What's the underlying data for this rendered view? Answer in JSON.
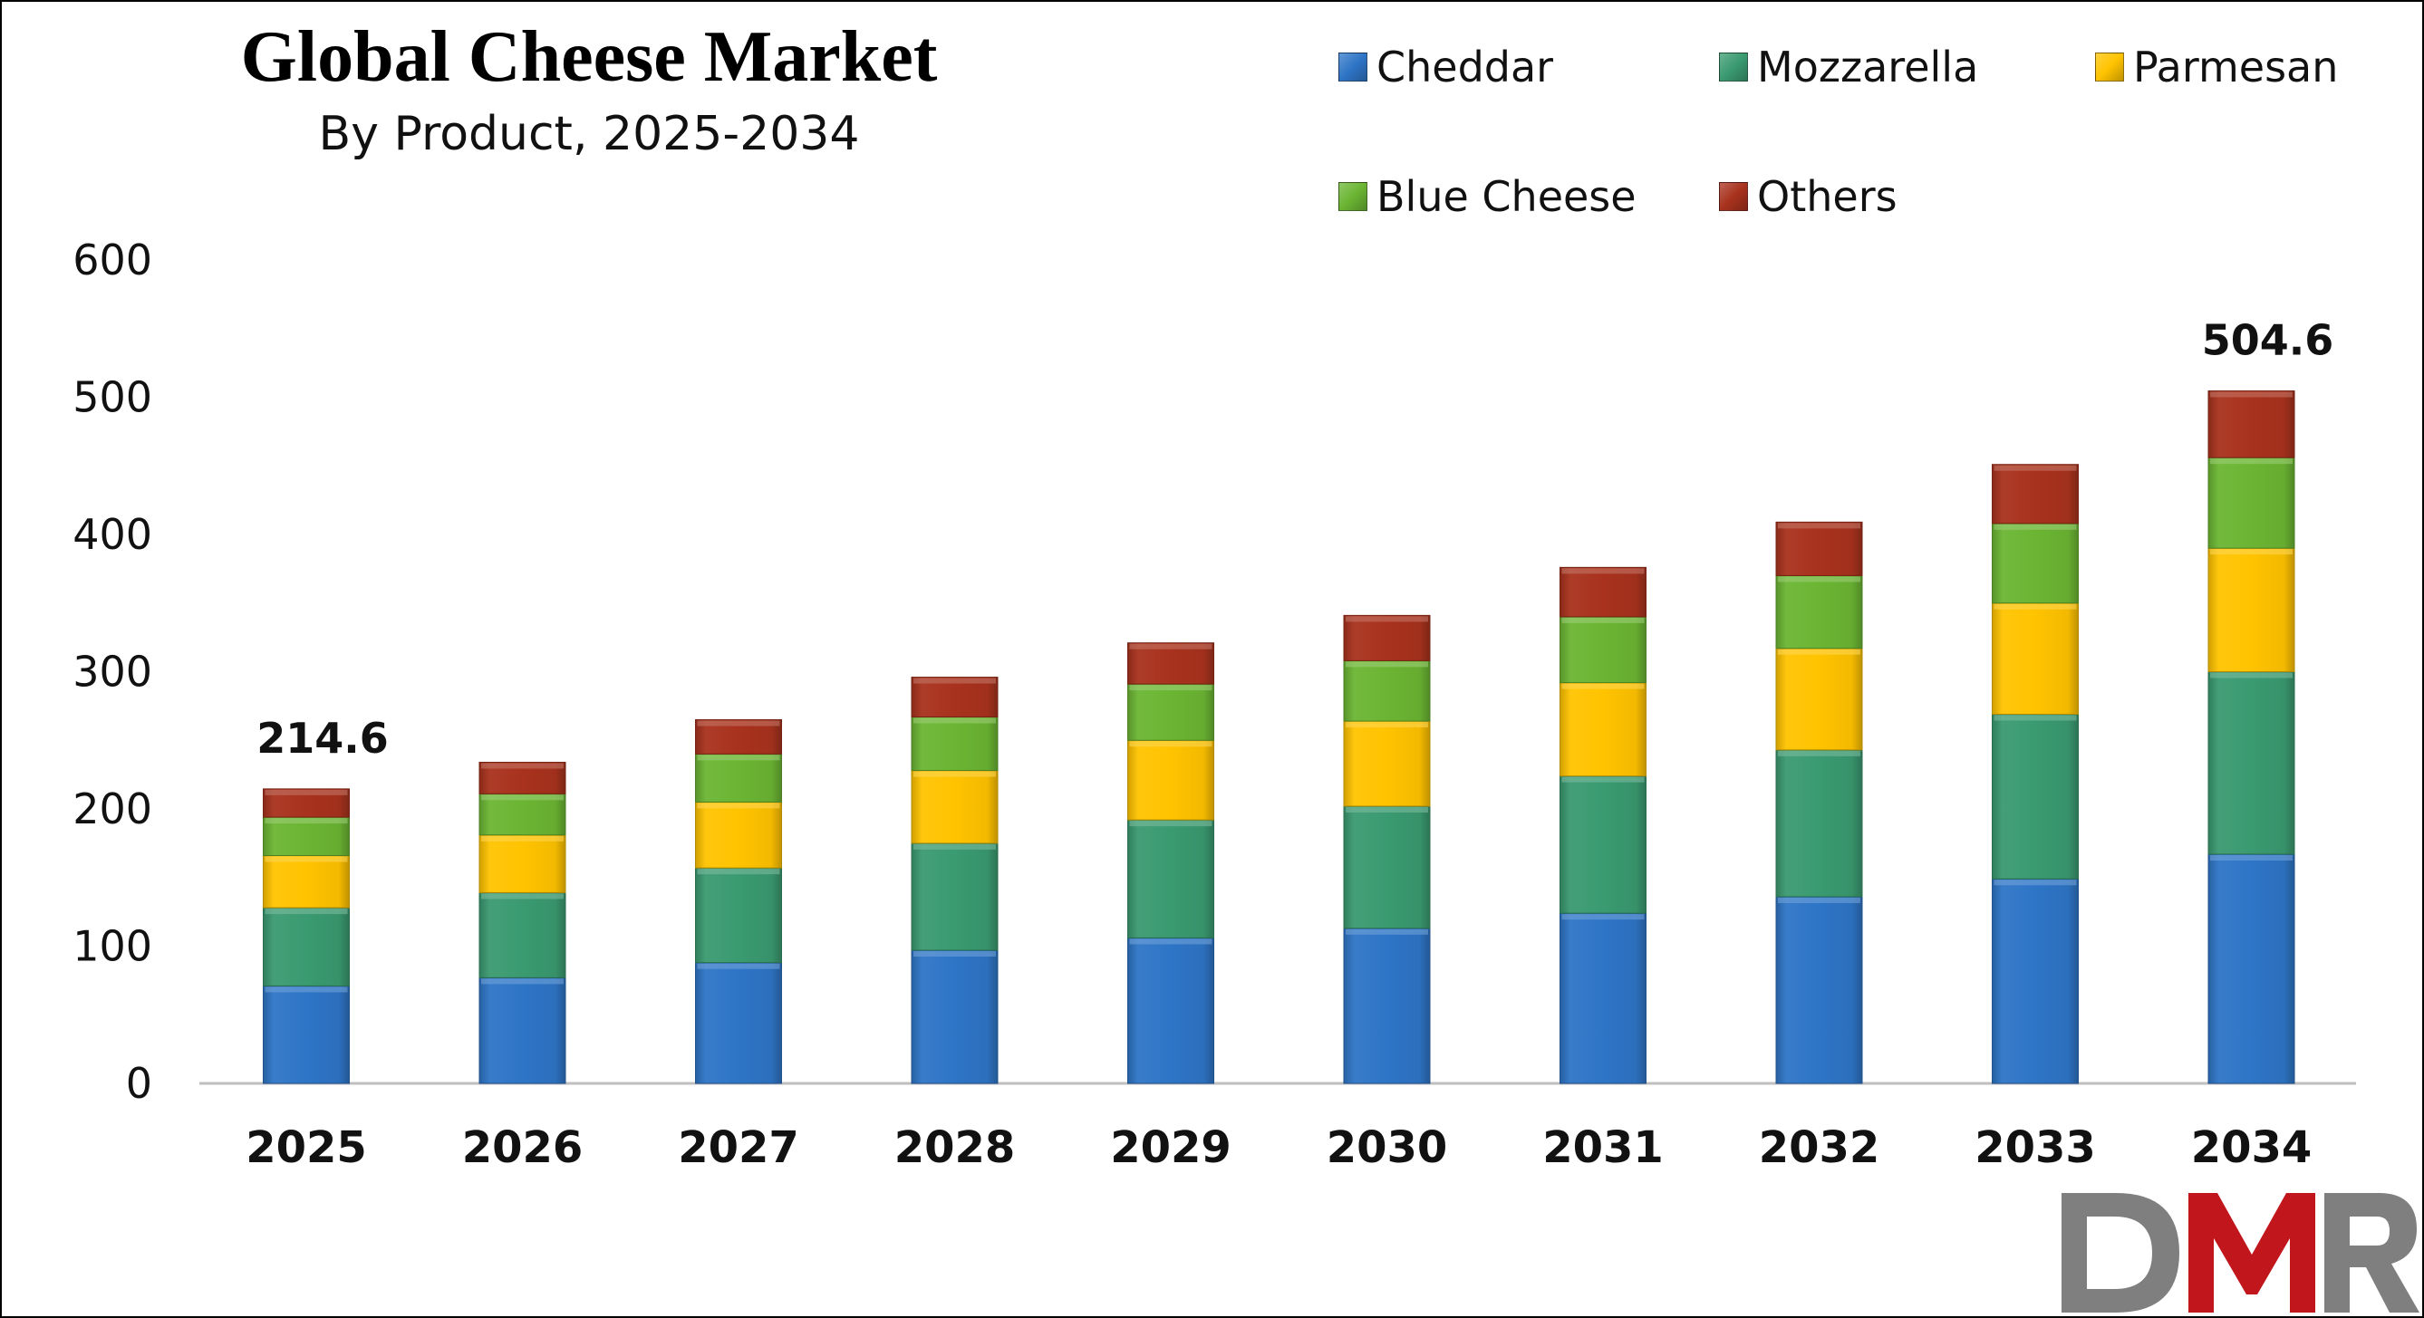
{
  "chart_data": {
    "type": "bar",
    "stacked": true,
    "title": "Global Cheese Market",
    "subtitle": "By Product, 2025-2034",
    "categories": [
      "2025",
      "2026",
      "2027",
      "2028",
      "2029",
      "2030",
      "2031",
      "2032",
      "2033",
      "2034"
    ],
    "series": [
      {
        "name": "Cheddar",
        "color": "#2E75C6",
        "values": [
          71,
          77,
          88,
          97,
          106,
          113,
          124,
          136,
          149,
          167
        ]
      },
      {
        "name": "Mozzarella",
        "color": "#3A9A70",
        "values": [
          57,
          62,
          69,
          78,
          86,
          89,
          100,
          107,
          120,
          133
        ]
      },
      {
        "name": "Parmesan",
        "color": "#FFC300",
        "values": [
          38,
          42,
          48,
          53,
          58,
          62,
          68,
          74,
          81,
          90
        ]
      },
      {
        "name": "Blue Cheese",
        "color": "#6BB533",
        "values": [
          28,
          30,
          35,
          39,
          41,
          44,
          48,
          53,
          58,
          66
        ]
      },
      {
        "name": "Others",
        "color": "#A8321D",
        "values": [
          20.6,
          23,
          25,
          29,
          30,
          33,
          36,
          39,
          43,
          48.6
        ]
      }
    ],
    "ylim": [
      0,
      600
    ],
    "yticks": [
      "0",
      "100",
      "200",
      "300",
      "400",
      "500",
      "600"
    ],
    "grid": false,
    "legend_position": "top-right",
    "annotations": [
      {
        "category": "2025",
        "label": "214.6"
      },
      {
        "category": "2034",
        "label": "504.6"
      }
    ]
  },
  "logo": {
    "text": "DMR",
    "colors": {
      "d": "#7f7f7f",
      "m": "#c0161c",
      "r": "#7f7f7f"
    }
  }
}
